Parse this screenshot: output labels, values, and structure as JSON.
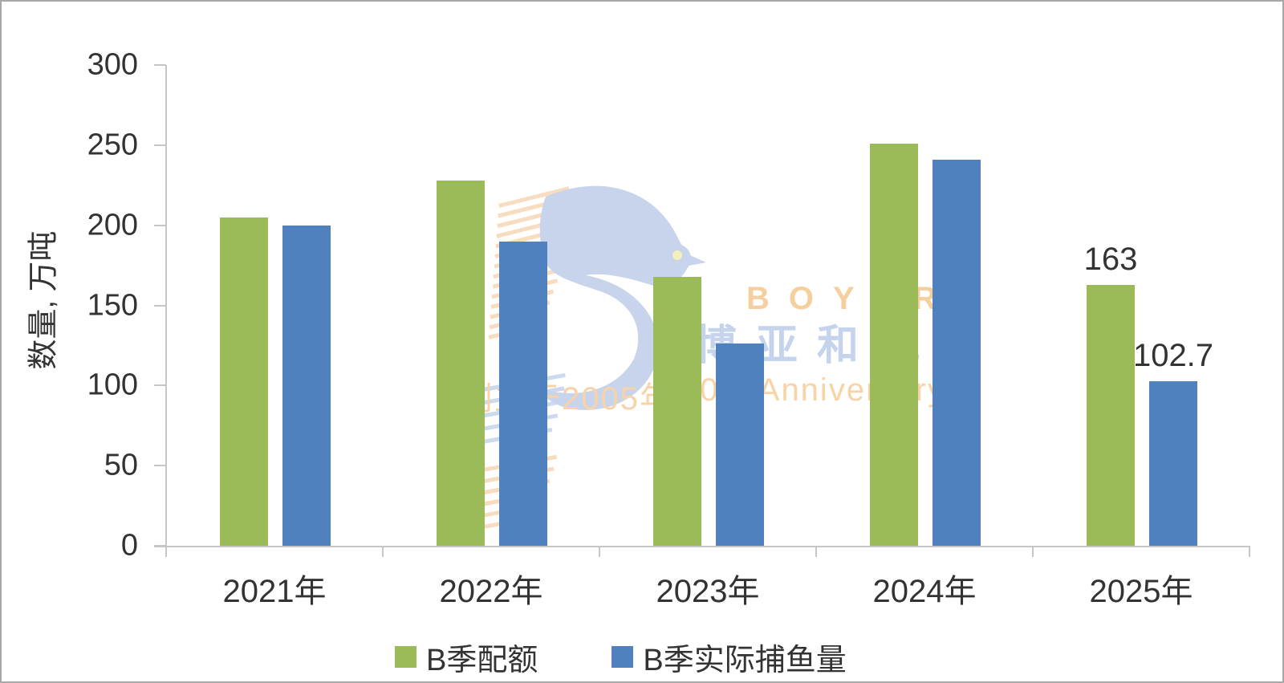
{
  "chart_data": {
    "type": "bar",
    "title": "",
    "categories": [
      "2021年",
      "2022年",
      "2023年",
      "2024年",
      "2025年"
    ],
    "series": [
      {
        "name": "B季配额",
        "color": "#9bba58",
        "values": [
          205,
          228,
          168,
          251,
          163
        ],
        "data_labels": [
          "",
          "",
          "",
          "",
          "163"
        ]
      },
      {
        "name": "B季实际捕鱼量",
        "color": "#4e81bd",
        "values": [
          200,
          190,
          126,
          241,
          102.7
        ],
        "data_labels": [
          "",
          "",
          "",
          "",
          "102.7"
        ]
      }
    ],
    "xlabel": "",
    "ylabel": "数量, 万吨",
    "ylim": [
      0,
      300
    ],
    "yticks": [
      0,
      50,
      100,
      150,
      200,
      250,
      300
    ],
    "grid": false,
    "legend_position": "bottom"
  },
  "watermark": {
    "brand": "BOYAR",
    "chinese_name": "博亚和讯",
    "founded_text": "创立于2005年",
    "anniversary_text": "20th Anniversary",
    "bird_color": "#c7d4eb",
    "stripe_orange": "#f8dcc0",
    "stripe_blue": "#ccd9ef",
    "eye_color": "#f5efc0"
  },
  "style": {
    "axis_color": "#c6c6c6",
    "text_color": "#333333",
    "border_color": "#a8a8a8",
    "background": "#ffffff"
  }
}
